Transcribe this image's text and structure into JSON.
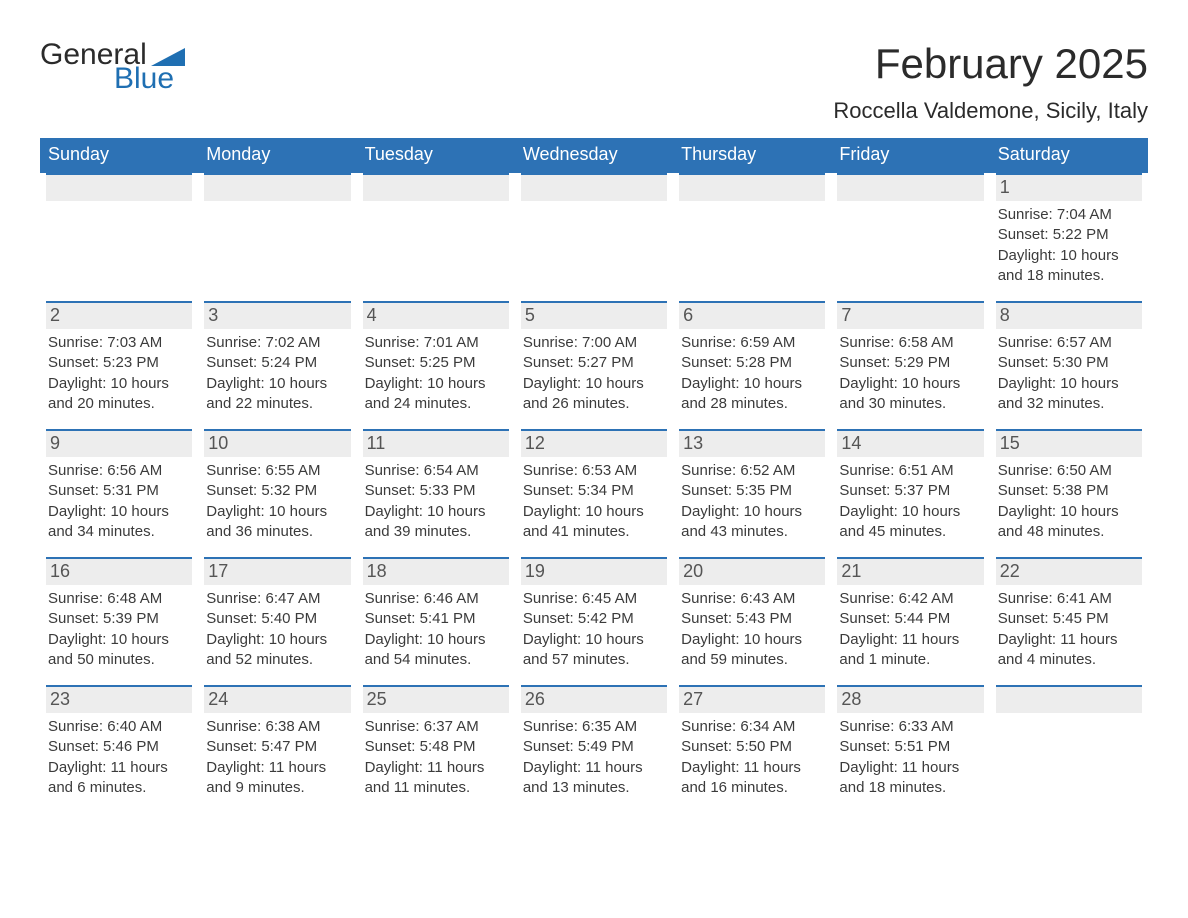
{
  "logo": {
    "word1": "General",
    "word2": "Blue",
    "text_color": "#2b2b2b",
    "accent_color": "#1f6fb2"
  },
  "title": "February 2025",
  "location": "Roccella Valdemone, Sicily, Italy",
  "colors": {
    "header_bg": "#2d72b5",
    "header_text": "#ffffff",
    "daybar_bg": "#ededed",
    "daybar_border": "#2d72b5",
    "body_text": "#3b3b3b",
    "page_bg": "#ffffff"
  },
  "weekdays": [
    "Sunday",
    "Monday",
    "Tuesday",
    "Wednesday",
    "Thursday",
    "Friday",
    "Saturday"
  ],
  "weeks": [
    [
      {
        "blank": true
      },
      {
        "blank": true
      },
      {
        "blank": true
      },
      {
        "blank": true
      },
      {
        "blank": true
      },
      {
        "blank": true
      },
      {
        "day": "1",
        "sunrise": "7:04 AM",
        "sunset": "5:22 PM",
        "daylight": "10 hours and 18 minutes."
      }
    ],
    [
      {
        "day": "2",
        "sunrise": "7:03 AM",
        "sunset": "5:23 PM",
        "daylight": "10 hours and 20 minutes."
      },
      {
        "day": "3",
        "sunrise": "7:02 AM",
        "sunset": "5:24 PM",
        "daylight": "10 hours and 22 minutes."
      },
      {
        "day": "4",
        "sunrise": "7:01 AM",
        "sunset": "5:25 PM",
        "daylight": "10 hours and 24 minutes."
      },
      {
        "day": "5",
        "sunrise": "7:00 AM",
        "sunset": "5:27 PM",
        "daylight": "10 hours and 26 minutes."
      },
      {
        "day": "6",
        "sunrise": "6:59 AM",
        "sunset": "5:28 PM",
        "daylight": "10 hours and 28 minutes."
      },
      {
        "day": "7",
        "sunrise": "6:58 AM",
        "sunset": "5:29 PM",
        "daylight": "10 hours and 30 minutes."
      },
      {
        "day": "8",
        "sunrise": "6:57 AM",
        "sunset": "5:30 PM",
        "daylight": "10 hours and 32 minutes."
      }
    ],
    [
      {
        "day": "9",
        "sunrise": "6:56 AM",
        "sunset": "5:31 PM",
        "daylight": "10 hours and 34 minutes."
      },
      {
        "day": "10",
        "sunrise": "6:55 AM",
        "sunset": "5:32 PM",
        "daylight": "10 hours and 36 minutes."
      },
      {
        "day": "11",
        "sunrise": "6:54 AM",
        "sunset": "5:33 PM",
        "daylight": "10 hours and 39 minutes."
      },
      {
        "day": "12",
        "sunrise": "6:53 AM",
        "sunset": "5:34 PM",
        "daylight": "10 hours and 41 minutes."
      },
      {
        "day": "13",
        "sunrise": "6:52 AM",
        "sunset": "5:35 PM",
        "daylight": "10 hours and 43 minutes."
      },
      {
        "day": "14",
        "sunrise": "6:51 AM",
        "sunset": "5:37 PM",
        "daylight": "10 hours and 45 minutes."
      },
      {
        "day": "15",
        "sunrise": "6:50 AM",
        "sunset": "5:38 PM",
        "daylight": "10 hours and 48 minutes."
      }
    ],
    [
      {
        "day": "16",
        "sunrise": "6:48 AM",
        "sunset": "5:39 PM",
        "daylight": "10 hours and 50 minutes."
      },
      {
        "day": "17",
        "sunrise": "6:47 AM",
        "sunset": "5:40 PM",
        "daylight": "10 hours and 52 minutes."
      },
      {
        "day": "18",
        "sunrise": "6:46 AM",
        "sunset": "5:41 PM",
        "daylight": "10 hours and 54 minutes."
      },
      {
        "day": "19",
        "sunrise": "6:45 AM",
        "sunset": "5:42 PM",
        "daylight": "10 hours and 57 minutes."
      },
      {
        "day": "20",
        "sunrise": "6:43 AM",
        "sunset": "5:43 PM",
        "daylight": "10 hours and 59 minutes."
      },
      {
        "day": "21",
        "sunrise": "6:42 AM",
        "sunset": "5:44 PM",
        "daylight": "11 hours and 1 minute."
      },
      {
        "day": "22",
        "sunrise": "6:41 AM",
        "sunset": "5:45 PM",
        "daylight": "11 hours and 4 minutes."
      }
    ],
    [
      {
        "day": "23",
        "sunrise": "6:40 AM",
        "sunset": "5:46 PM",
        "daylight": "11 hours and 6 minutes."
      },
      {
        "day": "24",
        "sunrise": "6:38 AM",
        "sunset": "5:47 PM",
        "daylight": "11 hours and 9 minutes."
      },
      {
        "day": "25",
        "sunrise": "6:37 AM",
        "sunset": "5:48 PM",
        "daylight": "11 hours and 11 minutes."
      },
      {
        "day": "26",
        "sunrise": "6:35 AM",
        "sunset": "5:49 PM",
        "daylight": "11 hours and 13 minutes."
      },
      {
        "day": "27",
        "sunrise": "6:34 AM",
        "sunset": "5:50 PM",
        "daylight": "11 hours and 16 minutes."
      },
      {
        "day": "28",
        "sunrise": "6:33 AM",
        "sunset": "5:51 PM",
        "daylight": "11 hours and 18 minutes."
      },
      {
        "blank": true
      }
    ]
  ],
  "labels": {
    "sunrise": "Sunrise: ",
    "sunset": "Sunset: ",
    "daylight": "Daylight: "
  }
}
